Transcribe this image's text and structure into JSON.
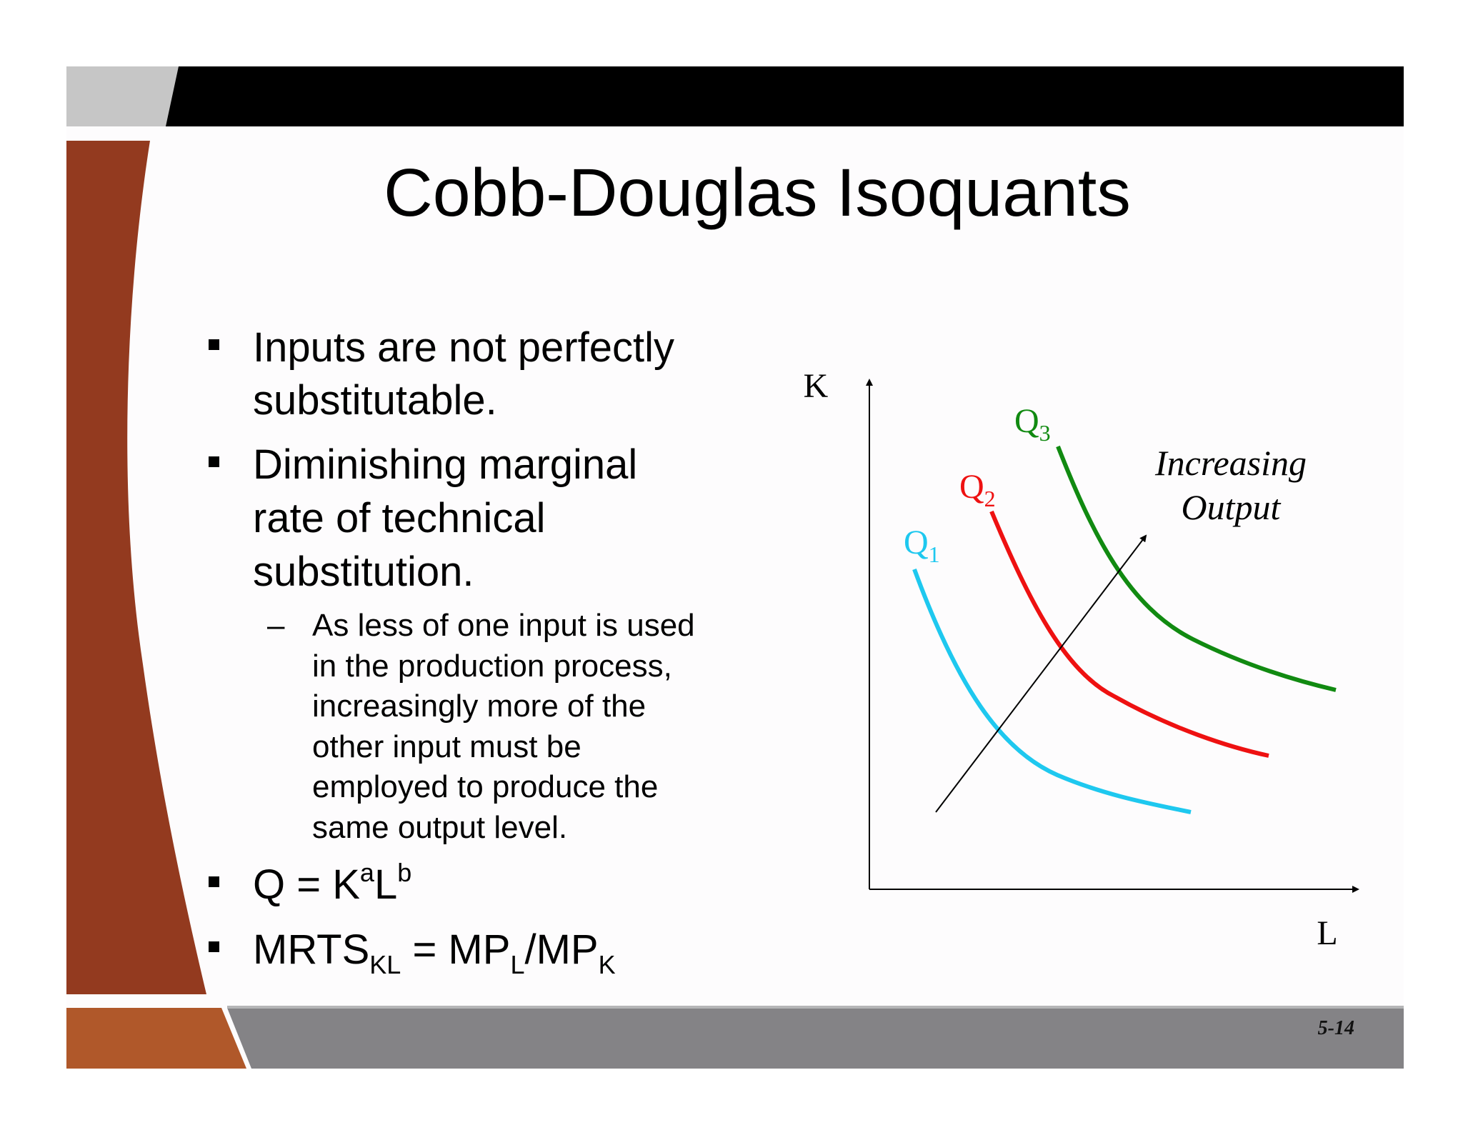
{
  "header": {
    "title": "Cobb-Douglas Isoquants"
  },
  "bullets": [
    {
      "lines": [
        "Inputs are not perfectly",
        "substitutable."
      ]
    },
    {
      "lines": [
        "Diminishing marginal",
        "rate of technical",
        "substitution."
      ],
      "sub": {
        "marker": "–",
        "lines": [
          "As less of one input is used",
          "in the production process,",
          "increasingly more of the",
          "other input must be",
          "employed to produce the",
          "same output level."
        ]
      }
    }
  ],
  "formulas": [
    [
      "Q = K",
      "a",
      "L",
      "b"
    ],
    [
      "MRTS",
      "KL",
      " = MP",
      "L",
      "/MP",
      "K"
    ]
  ],
  "diagram": {
    "y_axis_label": "K",
    "x_axis_label": "L",
    "isoquants": [
      {
        "name": "Q",
        "index": "1"
      },
      {
        "name": "Q",
        "index": "2"
      },
      {
        "name": "Q",
        "index": "3"
      }
    ],
    "arrow_label": [
      "Increasing",
      "Output"
    ]
  },
  "footer": {
    "slide_number": "5-14"
  }
}
